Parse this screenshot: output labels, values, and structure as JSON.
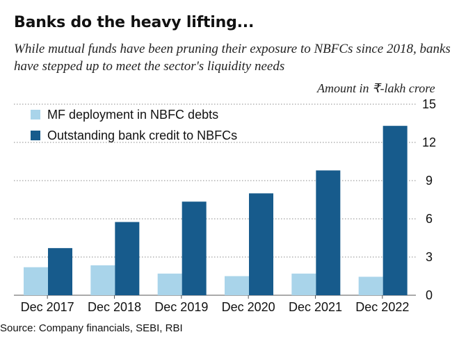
{
  "header": {
    "title": "Banks do the heavy lifting...",
    "subtitle": "While mutual funds have been pruning their exposure to NBFCs since 2018, banks have stepped up to meet the sector's liquidity needs",
    "unit_label": "Amount in ₹-lakh crore"
  },
  "footer": {
    "source": "Source: Company financials, SEBI, RBI"
  },
  "chart_data": {
    "type": "bar",
    "categories": [
      "Dec 2017",
      "Dec 2018",
      "Dec 2019",
      "Dec 2020",
      "Dec 2021",
      "Dec 2022"
    ],
    "series": [
      {
        "name": "MF deployment in NBFC debts",
        "color": "#a9d4ea",
        "values": [
          2.2,
          2.35,
          1.7,
          1.5,
          1.7,
          1.45
        ]
      },
      {
        "name": "Outstanding bank credit to NBFCs",
        "color": "#175b8c",
        "values": [
          3.7,
          5.75,
          7.35,
          8.0,
          9.8,
          13.3
        ]
      }
    ],
    "yticks": [
      0,
      3,
      6,
      9,
      12,
      15
    ],
    "ylim": [
      0,
      15
    ],
    "grid": true,
    "y_axis_side": "right",
    "legend_position": "top-left"
  }
}
